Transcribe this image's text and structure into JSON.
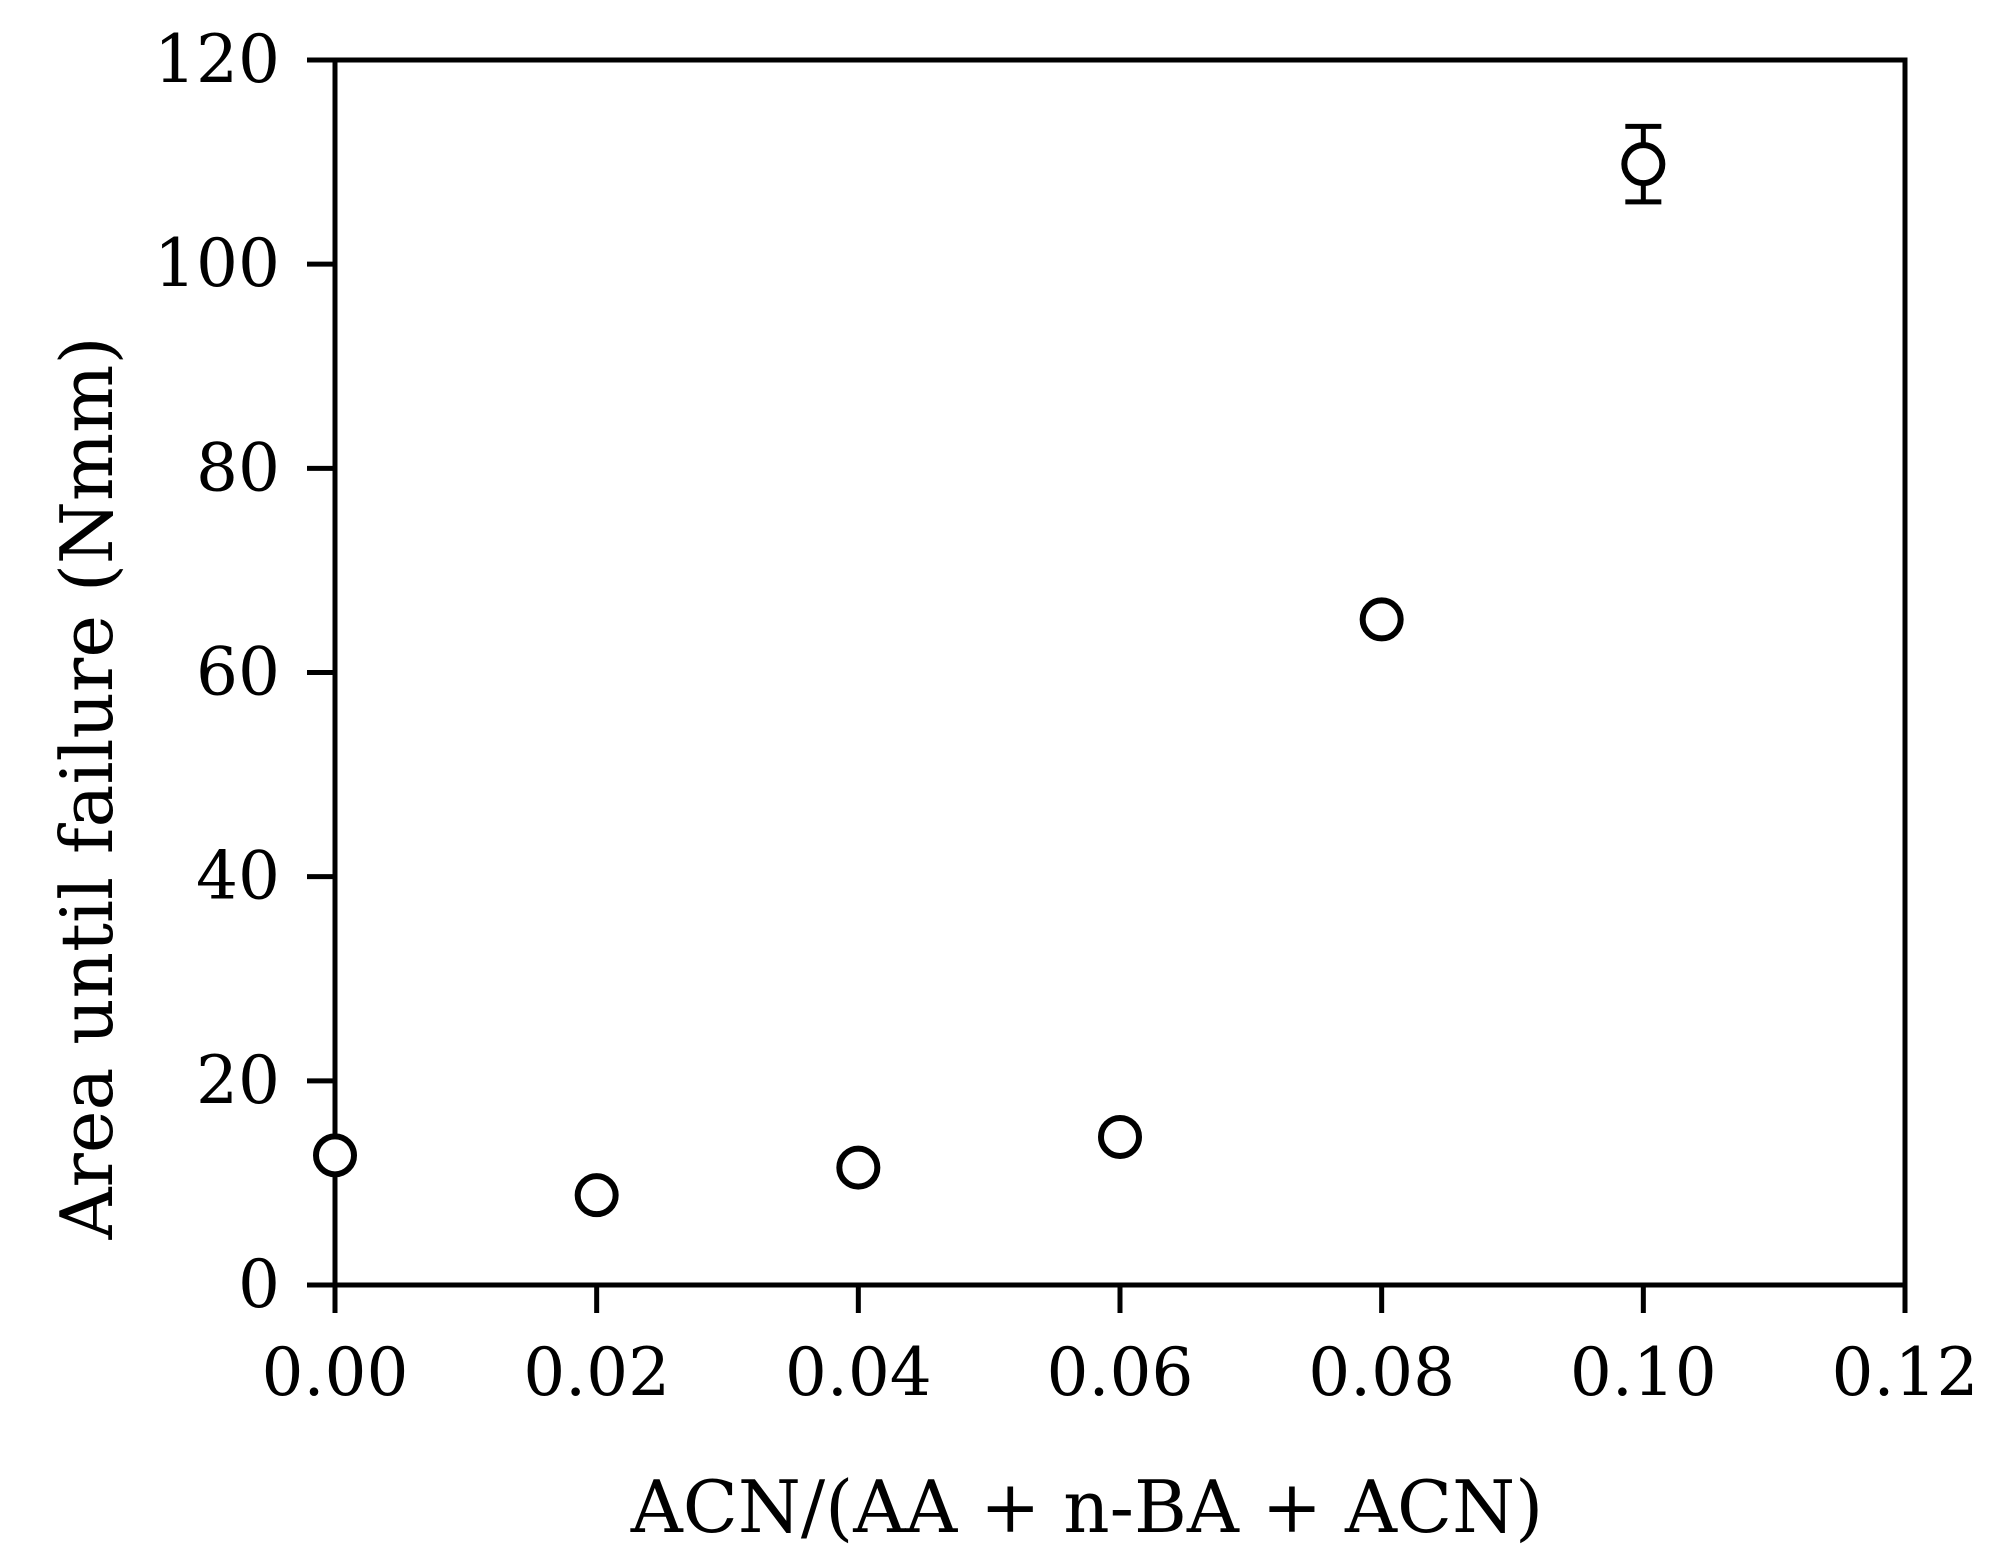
{
  "chart_data": {
    "type": "scatter",
    "title": "",
    "xlabel": "ACN/(AA + n-BA + ACN)",
    "ylabel": "Area until failure (Nmm)",
    "xlim": [
      0,
      0.12
    ],
    "ylim": [
      0,
      120
    ],
    "xticks": [
      "0.00",
      "0.02",
      "0.04",
      "0.06",
      "0.08",
      "0.10",
      "0.12"
    ],
    "yticks": [
      "0",
      "20",
      "40",
      "60",
      "80",
      "100",
      "120"
    ],
    "grid": false,
    "legend": "none",
    "marker": "open-circle",
    "series": [
      {
        "x": [
          0.0,
          0.02,
          0.04,
          0.06,
          0.08,
          0.1
        ],
        "y": [
          12.7,
          8.8,
          11.5,
          14.5,
          65.2,
          109.8
        ],
        "error": [
          0,
          0,
          0,
          0,
          0,
          3.7
        ]
      }
    ]
  }
}
